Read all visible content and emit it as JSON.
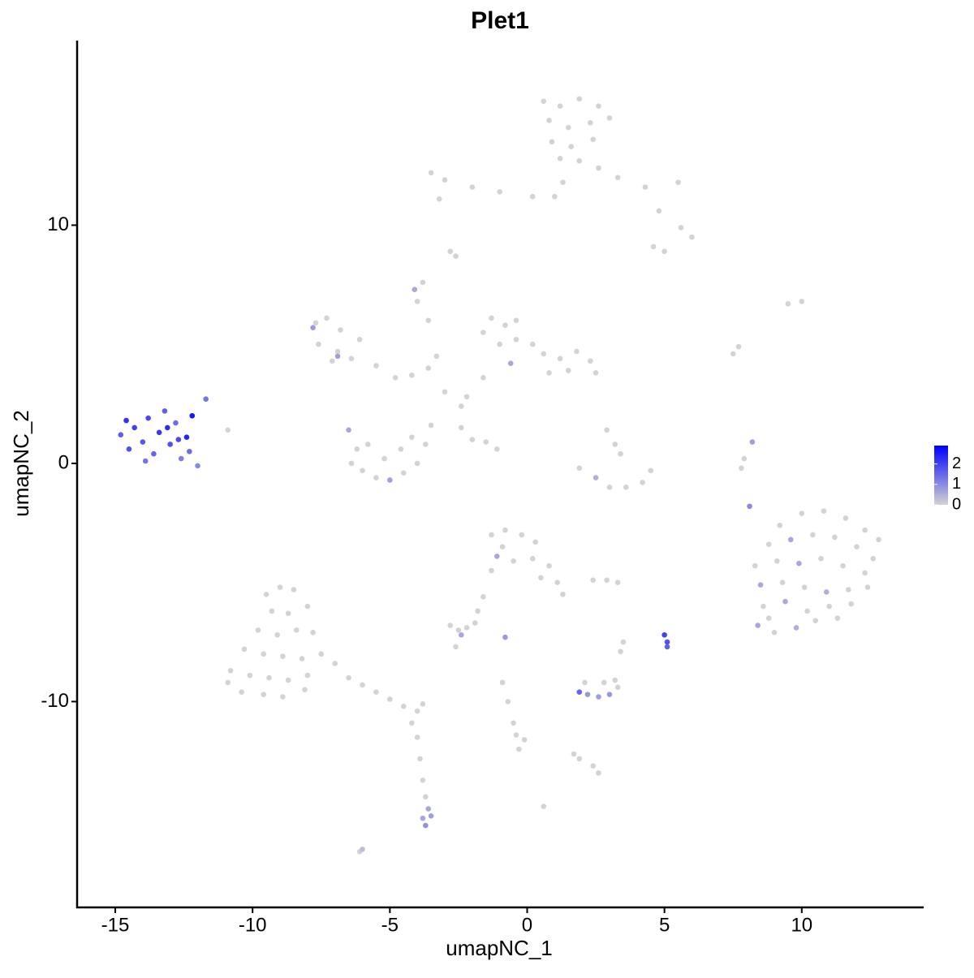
{
  "chart_data": {
    "type": "scatter",
    "title": "Plet1",
    "xlabel": "umapNC_1",
    "ylabel": "umapNC_2",
    "xlim": [
      -16.39,
      14.44
    ],
    "ylim": [
      -18.64,
      17.75
    ],
    "xticks": [
      -15,
      -10,
      -5,
      0,
      5,
      10
    ],
    "yticks": [
      -10,
      0,
      10
    ],
    "color_low": "#d3d3d3",
    "color_high": "#0000ff",
    "color_lim": [
      0,
      2.9
    ],
    "color_ticks": [
      0,
      1,
      2
    ],
    "x": [
      -14.8,
      -14.5,
      -14.3,
      -14.0,
      -13.8,
      -13.6,
      -13.4,
      -13.2,
      -13.0,
      -12.8,
      -12.6,
      -12.4,
      -12.2,
      -12.0,
      -11.7,
      -14.6,
      -13.9,
      -13.1,
      -12.7,
      -12.3,
      -10.9,
      0.6,
      1.2,
      1.9,
      2.6,
      0.8,
      1.5,
      2.3,
      3.0,
      0.9,
      1.6,
      2.4,
      1.2,
      1.9,
      1.3,
      1.0,
      0.2,
      -1.0,
      -2.0,
      -3.0,
      -3.5,
      -3.2,
      2.6,
      3.3,
      4.3,
      5.5,
      4.8,
      5.6,
      6.0,
      4.6,
      5.0,
      -2.8,
      -2.6,
      9.5,
      10.0,
      -7.7,
      -7.3,
      -6.8,
      -7.6,
      -6.9,
      -6.4,
      -7.1,
      -6.1,
      -5.5,
      -4.8,
      -4.2,
      -3.3,
      -7.8,
      -6.9,
      -4.0,
      -4.1,
      -3.8,
      -3.6,
      -1.6,
      -1.3,
      -0.8,
      -0.4,
      -1.0,
      -0.4,
      0.2,
      0.6,
      1.2,
      1.8,
      2.3,
      2.5,
      1.5,
      0.8,
      -0.6,
      -1.6,
      -2.2,
      -2.4,
      -3.0,
      -3.6,
      -6.5,
      -6.2,
      -6.4,
      -6.0,
      -5.5,
      -5.0,
      -4.5,
      -4.0,
      -3.7,
      -3.5,
      -4.2,
      -5.2,
      -5.8,
      -4.6,
      -2.4,
      -2.0,
      -1.5,
      -1.1,
      1.9,
      2.5,
      3.0,
      3.6,
      4.2,
      4.5,
      3.2,
      3.4,
      2.9,
      7.8,
      7.9,
      8.2,
      8.1,
      7.7,
      7.5,
      9.2,
      10.0,
      10.8,
      11.6,
      12.3,
      12.8,
      8.8,
      9.6,
      10.4,
      11.2,
      12.0,
      12.6,
      8.3,
      9.1,
      9.9,
      10.7,
      11.5,
      12.3,
      8.5,
      9.3,
      10.1,
      10.9,
      11.7,
      12.4,
      8.6,
      9.4,
      10.2,
      11.0,
      11.8,
      8.4,
      9.0,
      9.8,
      10.5,
      11.3,
      8.8,
      -1.3,
      -0.8,
      -0.2,
      0.3,
      -1.1,
      -0.5,
      0.2,
      0.8,
      1.1,
      1.3,
      0.5,
      -0.9,
      -1.3,
      -1.6,
      -1.8,
      -2.8,
      -2.5,
      -2.4,
      -2.2,
      -1.9,
      -2.6,
      -0.8,
      2.4,
      2.9,
      3.3,
      3.5,
      3.4,
      5.0,
      5.1,
      5.1,
      1.9,
      2.2,
      2.6,
      3.0,
      3.3,
      2.1,
      2.8,
      3.2,
      -0.9,
      -0.7,
      -0.5,
      -0.4,
      -0.1,
      -0.3,
      1.9,
      2.4,
      2.6,
      1.7,
      0.6,
      -9.5,
      -9.0,
      -8.5,
      -9.3,
      -8.7,
      -8.0,
      -9.8,
      -9.1,
      -8.4,
      -7.8,
      -10.3,
      -9.6,
      -8.9,
      -8.2,
      -7.5,
      -10.8,
      -10.1,
      -9.4,
      -8.7,
      -8.0,
      -10.4,
      -9.6,
      -8.9,
      -8.1,
      -10.9,
      -7.0,
      -6.5,
      -6.0,
      -5.5,
      -5.0,
      -4.5,
      -4.0,
      -3.8,
      -4.2,
      -4.0,
      -3.9,
      -3.8,
      -3.7,
      -3.6,
      -3.5,
      -3.7,
      -3.8,
      -6.1,
      -6.0
    ],
    "y": [
      1.2,
      0.6,
      1.5,
      0.9,
      1.9,
      0.4,
      1.3,
      2.2,
      0.8,
      1.7,
      0.2,
      1.1,
      2.0,
      -0.1,
      2.7,
      1.8,
      0.1,
      1.5,
      1.0,
      0.5,
      1.4,
      15.2,
      15.0,
      15.3,
      15.0,
      14.4,
      14.1,
      14.3,
      14.5,
      13.5,
      13.3,
      13.6,
      12.8,
      12.7,
      11.8,
      11.2,
      11.2,
      11.4,
      11.6,
      11.9,
      12.2,
      11.1,
      12.4,
      12.0,
      11.6,
      11.8,
      10.6,
      9.9,
      9.5,
      9.1,
      8.9,
      8.9,
      8.7,
      6.7,
      6.8,
      5.9,
      6.1,
      5.6,
      5.0,
      4.7,
      4.4,
      4.3,
      5.2,
      4.1,
      3.6,
      3.7,
      4.5,
      5.7,
      4.5,
      6.8,
      7.3,
      7.6,
      6.0,
      5.5,
      6.1,
      5.8,
      6.0,
      5.0,
      5.2,
      5.0,
      4.6,
      4.4,
      4.7,
      4.3,
      3.8,
      3.9,
      3.8,
      4.2,
      3.6,
      2.8,
      2.4,
      3.0,
      4.0,
      1.4,
      0.6,
      0.0,
      -0.3,
      -0.6,
      -0.7,
      -0.4,
      0.0,
      0.8,
      1.6,
      1.1,
      0.2,
      0.8,
      0.6,
      1.5,
      1.0,
      0.9,
      0.6,
      -0.2,
      -0.6,
      -1.0,
      -1.0,
      -0.8,
      -0.3,
      0.8,
      0.4,
      1.4,
      -0.2,
      0.2,
      0.9,
      -1.8,
      4.9,
      4.6,
      -2.6,
      -2.1,
      -2.0,
      -2.3,
      -2.8,
      -3.2,
      -3.4,
      -3.2,
      -3.0,
      -3.1,
      -3.5,
      -4.0,
      -4.3,
      -4.1,
      -4.2,
      -4.0,
      -4.3,
      -4.6,
      -5.1,
      -5.0,
      -5.2,
      -5.4,
      -5.3,
      -5.2,
      -6.0,
      -5.8,
      -6.2,
      -6.0,
      -5.9,
      -6.8,
      -7.1,
      -6.9,
      -6.6,
      -6.5,
      -6.5,
      -3.0,
      -2.8,
      -3.0,
      -3.3,
      -3.9,
      -4.1,
      -4.0,
      -4.3,
      -5.0,
      -5.5,
      -4.8,
      -3.5,
      -4.5,
      -5.6,
      -6.2,
      -6.8,
      -7.0,
      -7.2,
      -6.9,
      -6.7,
      -7.7,
      -7.3,
      -4.9,
      -4.9,
      -5.0,
      -7.5,
      -7.9,
      -7.2,
      -7.5,
      -7.7,
      -9.6,
      -9.7,
      -9.8,
      -9.7,
      -9.4,
      -9.2,
      -9.2,
      -9.1,
      -9.2,
      -10.0,
      -10.9,
      -11.4,
      -11.6,
      -12.0,
      -12.4,
      -12.7,
      -13.0,
      -12.2,
      -14.4,
      -5.5,
      -5.2,
      -5.3,
      -6.2,
      -6.3,
      -6.0,
      -7.0,
      -7.2,
      -7.0,
      -7.1,
      -7.8,
      -8.0,
      -8.1,
      -8.2,
      -8.0,
      -8.7,
      -8.9,
      -9.0,
      -9.1,
      -8.9,
      -9.6,
      -9.7,
      -9.8,
      -9.5,
      -9.2,
      -8.4,
      -9.0,
      -9.3,
      -9.6,
      -9.9,
      -10.2,
      -10.4,
      -10.1,
      -10.9,
      -11.5,
      -12.4,
      -13.3,
      -14.0,
      -14.5,
      -14.8,
      -15.2,
      -14.9,
      -16.3,
      -16.2
    ],
    "values": [
      1.6,
      1.8,
      2.0,
      1.7,
      1.9,
      1.5,
      2.1,
      1.6,
      1.8,
      1.4,
      1.2,
      2.4,
      2.6,
      1.0,
      1.3,
      2.2,
      1.3,
      2.3,
      1.9,
      1.4,
      0,
      0,
      0,
      0,
      0,
      0,
      0,
      0,
      0,
      0,
      0,
      0,
      0,
      0,
      0,
      0,
      0,
      0,
      0,
      0,
      0,
      0,
      0,
      0,
      0,
      0,
      0,
      0,
      0,
      0,
      0,
      0,
      0,
      0,
      0,
      0,
      0,
      0,
      0,
      0,
      0,
      0,
      0,
      0,
      0,
      0,
      0,
      0.8,
      0.7,
      0,
      0.6,
      0,
      0,
      0,
      0,
      0,
      0,
      0,
      0,
      0,
      0,
      0,
      0,
      0,
      0,
      0,
      0,
      0.6,
      0,
      0,
      0,
      0,
      0,
      0.6,
      0,
      0,
      0,
      0,
      0.7,
      0,
      0,
      0,
      0,
      0,
      0,
      0,
      0,
      0,
      0,
      0,
      0,
      0,
      0.5,
      0,
      0,
      0,
      0,
      0,
      0,
      0,
      0,
      0,
      0.7,
      1.0,
      0,
      0,
      0,
      0,
      0,
      0,
      0,
      0,
      0,
      0.6,
      0,
      0,
      0,
      0,
      0,
      0,
      0.6,
      0,
      0,
      0,
      0.6,
      0,
      0,
      0.5,
      0,
      0,
      0,
      0.6,
      0,
      0,
      0,
      0.6,
      0,
      0.5,
      0,
      0,
      0,
      0,
      0,
      0,
      0,
      0.6,
      0,
      0,
      0,
      0,
      0,
      0,
      0,
      0,
      0,
      0,
      0,
      0,
      0.6,
      0,
      0,
      0,
      0.8,
      0,
      0,
      0,
      0,
      0,
      2.0,
      1.8,
      1.6,
      1.5,
      0.8,
      0.7,
      0.8,
      0,
      0,
      0,
      0,
      0,
      0,
      0,
      0,
      0,
      0,
      0,
      0,
      0,
      0,
      0,
      0,
      0,
      0,
      0,
      0,
      0,
      0,
      0,
      0,
      0,
      0,
      0,
      0,
      0,
      0,
      0,
      0,
      0,
      0,
      0,
      0,
      0,
      0,
      0,
      0,
      0,
      0,
      0,
      0,
      0,
      0,
      0,
      0,
      0,
      0,
      0,
      0,
      0,
      0.6,
      0.7,
      0.9,
      0.6,
      0,
      0.3
    ]
  }
}
